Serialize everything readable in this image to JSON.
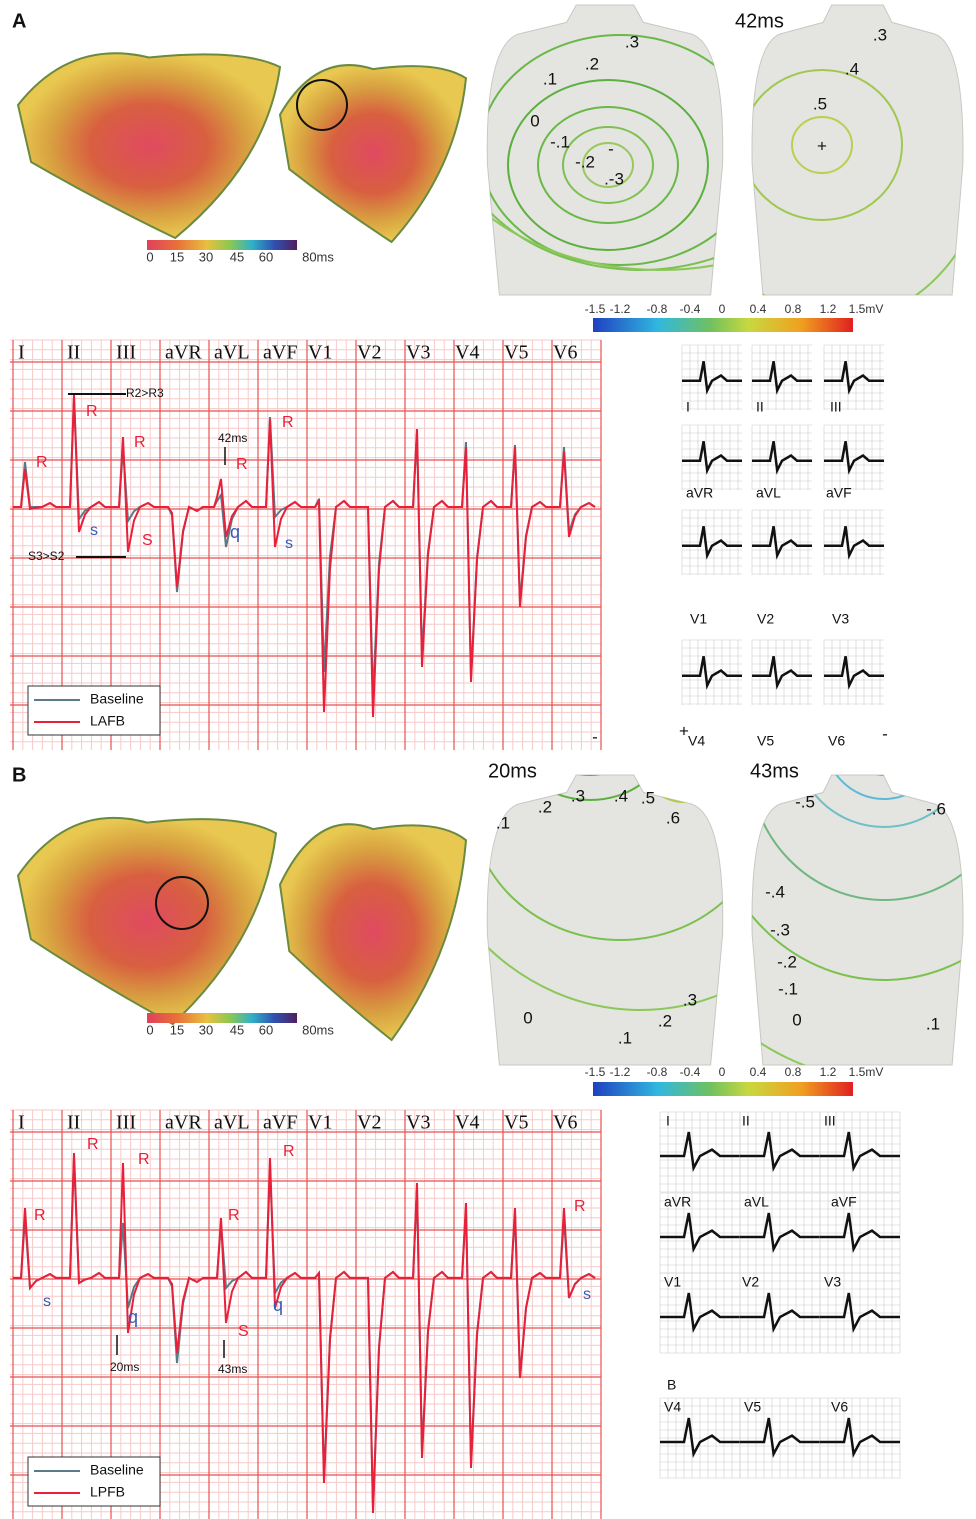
{
  "panels": [
    {
      "label": "A",
      "heart_scale": [
        "0",
        "15",
        "30",
        "45",
        "60",
        "80ms"
      ],
      "time_labels": [
        "42ms"
      ],
      "front_contours": [
        ".3",
        ".2",
        ".1",
        "0",
        "-.1",
        "-.2",
        "-",
        ".-3"
      ],
      "back_contours": [
        ".3",
        ".4",
        ".5",
        "+"
      ],
      "voltage_scale": [
        "-1.5",
        "-1.2",
        "-0.8",
        "-0.4",
        "0",
        "0.4",
        "0.8",
        "1.2",
        "1.5mV"
      ],
      "leads": [
        "I",
        "II",
        "III",
        "aVR",
        "aVL",
        "aVF",
        "V1",
        "V2",
        "V3",
        "V4",
        "V5",
        "V6"
      ],
      "annotations": [
        "R",
        "R2>R3",
        "R",
        "R",
        "42ms",
        "R",
        "R",
        "s",
        "S3>S2",
        "S",
        "q",
        "s"
      ],
      "legend": [
        "Baseline",
        "LAFB"
      ],
      "clinical_leads": [
        "I",
        "II",
        "III",
        "aVR",
        "aVL",
        "aVF",
        "V1",
        "V2",
        "V3",
        "V4",
        "V5",
        "V6"
      ]
    },
    {
      "label": "B",
      "heart_scale": [
        "0",
        "15",
        "30",
        "45",
        "60",
        "80ms"
      ],
      "time_labels": [
        "20ms",
        "43ms"
      ],
      "front_contours": [
        ".2",
        ".3",
        ".4",
        ".5",
        ".1",
        ".6",
        "+",
        "-",
        "0",
        ".1",
        ".2",
        ".3"
      ],
      "back_contours": [
        "-.5",
        "-.6",
        "-.4",
        "-.3",
        "-.2",
        "-.1",
        "-",
        "0",
        ".1"
      ],
      "voltage_scale": [
        "-1.5",
        "-1.2",
        "-0.8",
        "-0.4",
        "0",
        "0.4",
        "0.8",
        "1.2",
        "1.5mV"
      ],
      "leads": [
        "I",
        "II",
        "III",
        "aVR",
        "aVL",
        "aVF",
        "V1",
        "V2",
        "V3",
        "V4",
        "V5",
        "V6"
      ],
      "annotations": [
        "R",
        "s",
        "R",
        "R",
        "q",
        "20ms",
        "R",
        "S",
        "43ms",
        "q",
        "R",
        "R",
        "s"
      ],
      "legend": [
        "Baseline",
        "LPFB"
      ],
      "clinical_leads": [
        "I",
        "II",
        "III",
        "aVR",
        "aVL",
        "aVF",
        "V1",
        "V2",
        "V3",
        "V4",
        "V5",
        "V6"
      ],
      "clinical_sublabel": "B"
    }
  ]
}
